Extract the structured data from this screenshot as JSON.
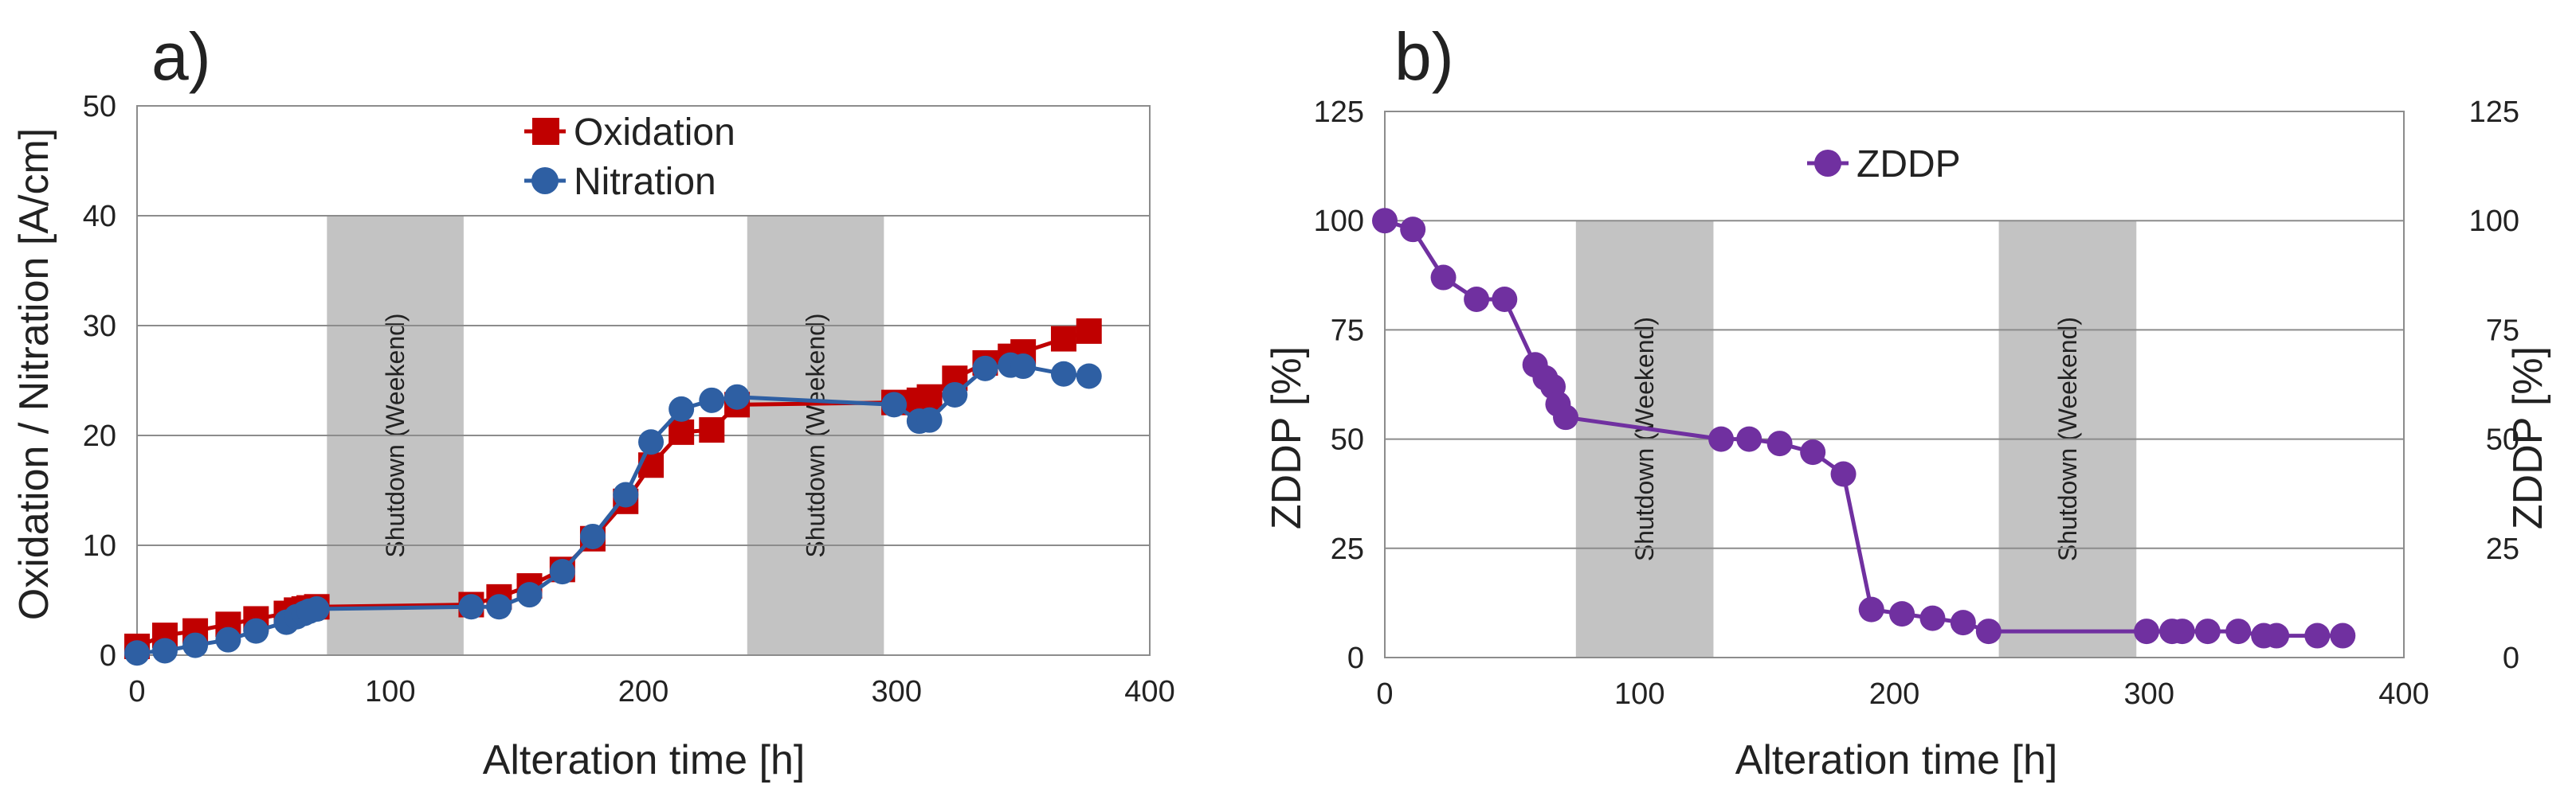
{
  "chart_data": [
    {
      "type": "line",
      "panel_label": "a)",
      "xlabel": "Alteration time [h]",
      "ylabel": "Oxidation / Nitration [A/cm]",
      "xlim": [
        0,
        400
      ],
      "ylim": [
        0,
        50
      ],
      "xticks": [
        0,
        100,
        200,
        300,
        400
      ],
      "yticks": [
        0,
        10,
        20,
        30,
        40,
        50
      ],
      "grid": "horizontal",
      "legend": "top-center",
      "shaded_regions": [
        {
          "x0": 75,
          "x1": 129,
          "label": "Shutdown (Weekend)"
        },
        {
          "x0": 241,
          "x1": 295,
          "label": "Shutdown (Weekend)"
        }
      ],
      "series": [
        {
          "name": "Oxidation",
          "color": "#c00000",
          "marker": "square",
          "x": [
            0,
            11,
            23,
            36,
            47,
            59,
            63,
            66,
            68,
            71,
            132,
            143,
            155,
            168,
            180,
            193,
            203,
            215,
            227,
            237,
            299,
            309,
            313,
            323,
            335,
            345,
            350,
            366,
            376
          ],
          "y": [
            0.8,
            1.8,
            2.2,
            2.8,
            3.3,
            3.8,
            4.1,
            4.2,
            4.3,
            4.4,
            4.6,
            5.3,
            6.3,
            7.8,
            10.6,
            14.0,
            17.3,
            20.3,
            20.5,
            22.8,
            23.0,
            23.2,
            23.5,
            25.2,
            26.6,
            27.2,
            27.6,
            28.8,
            29.5
          ]
        },
        {
          "name": "Nitration",
          "color": "#2e5fa3",
          "marker": "circle",
          "x": [
            0,
            11,
            23,
            36,
            47,
            59,
            63,
            66,
            68,
            71,
            132,
            143,
            155,
            168,
            180,
            193,
            203,
            215,
            227,
            237,
            299,
            309,
            313,
            323,
            335,
            345,
            350,
            366,
            376
          ],
          "y": [
            0.2,
            0.4,
            0.9,
            1.4,
            2.2,
            3.0,
            3.5,
            3.8,
            4.0,
            4.2,
            4.4,
            4.4,
            5.5,
            7.6,
            10.8,
            14.6,
            19.4,
            22.4,
            23.2,
            23.5,
            22.8,
            21.3,
            21.4,
            23.7,
            26.1,
            26.4,
            26.3,
            25.6,
            25.4
          ]
        }
      ]
    },
    {
      "type": "line",
      "panel_label": "b)",
      "xlabel": "Alteration time [h]",
      "ylabel": "ZDDP [%]",
      "ylabel_right": "ZDDP [%]",
      "xlim": [
        0,
        400
      ],
      "ylim": [
        0,
        125
      ],
      "xticks": [
        0,
        100,
        200,
        300,
        400
      ],
      "yticks": [
        0,
        25,
        50,
        75,
        100,
        125
      ],
      "grid": "horizontal",
      "legend": "top-center",
      "shaded_regions": [
        {
          "x0": 75,
          "x1": 129,
          "label": "Shutdown (Weekend)"
        },
        {
          "x0": 241,
          "x1": 295,
          "label": "Shutdown (Weekend)"
        }
      ],
      "series": [
        {
          "name": "ZDDP",
          "color": "#7030a0",
          "marker": "circle",
          "x": [
            0,
            11,
            23,
            36,
            47,
            59,
            63,
            66,
            68,
            71,
            132,
            143,
            155,
            168,
            180,
            191,
            203,
            215,
            227,
            237,
            299,
            309,
            313,
            323,
            335,
            345,
            350,
            366,
            376
          ],
          "y": [
            100,
            98,
            87,
            82,
            82,
            67,
            64,
            62,
            58,
            55,
            50,
            50,
            49,
            47,
            42,
            11,
            10,
            9,
            8,
            6,
            6,
            6,
            6,
            6,
            6,
            5,
            5,
            5,
            5
          ]
        }
      ]
    }
  ]
}
